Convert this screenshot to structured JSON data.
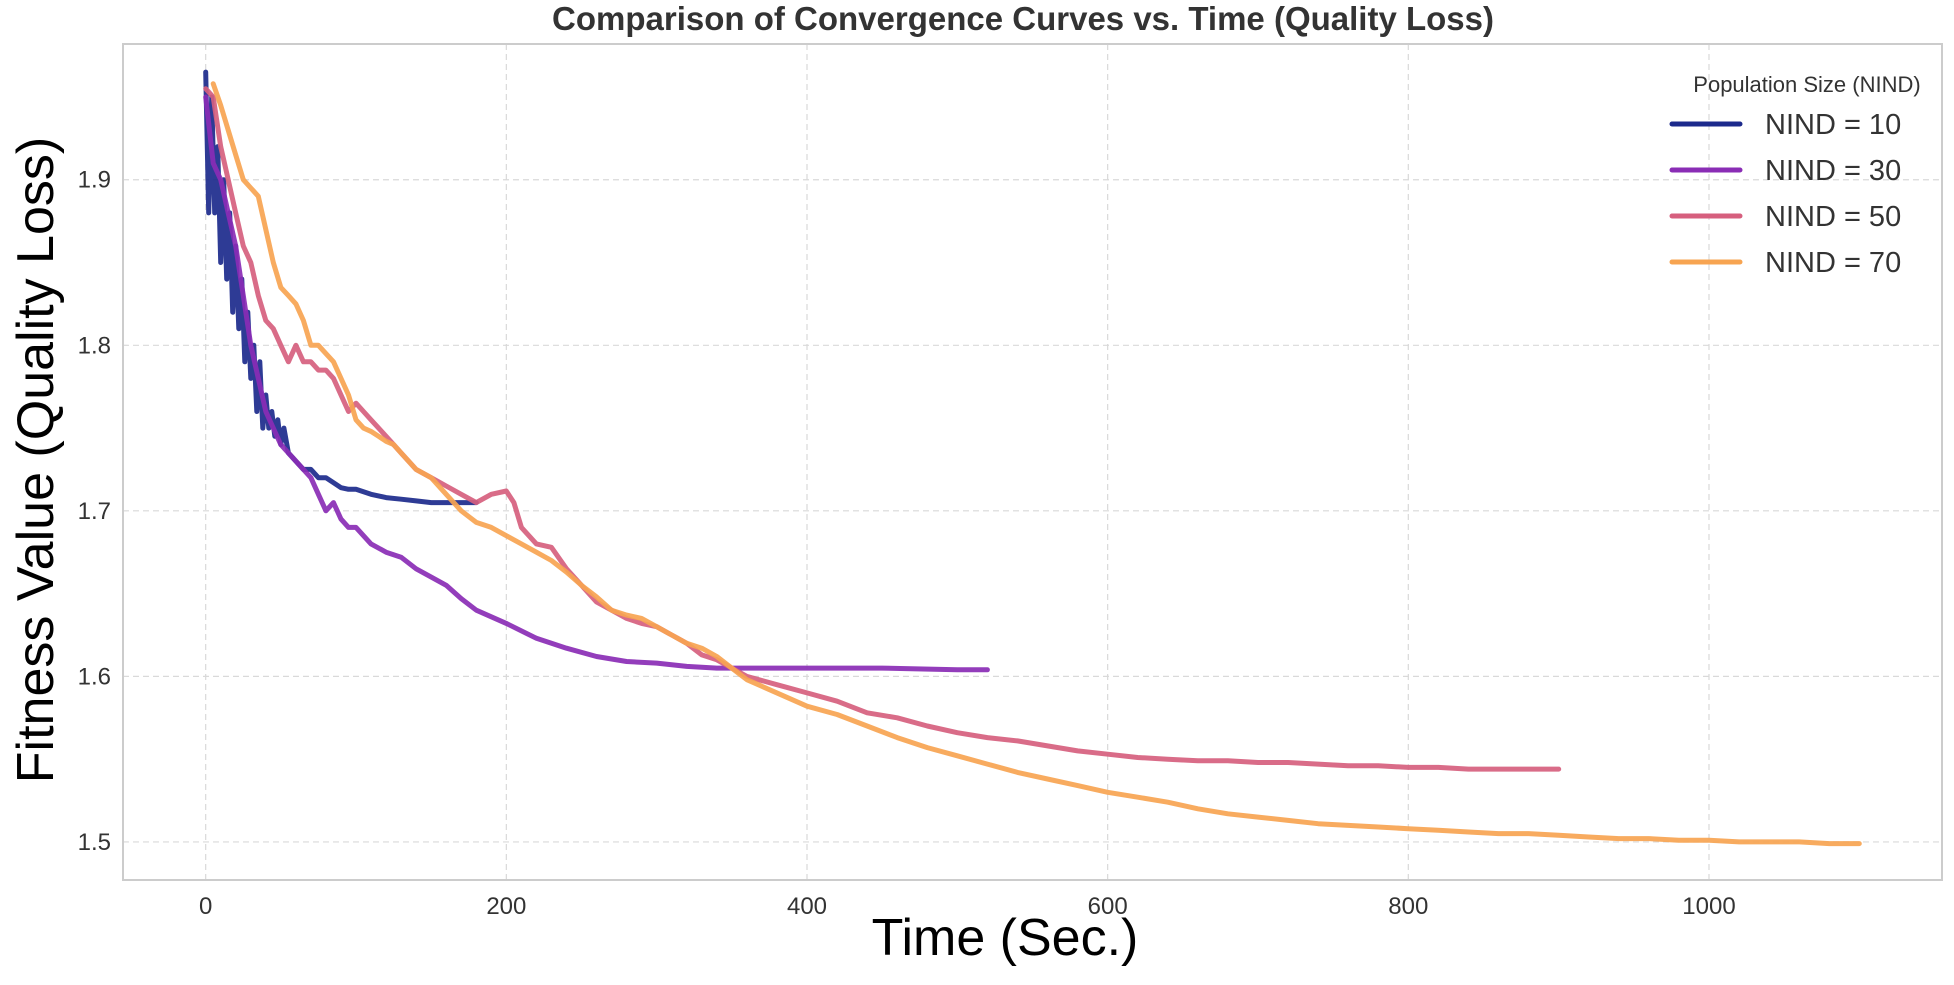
{
  "chart_data": {
    "type": "line",
    "title": "Comparison of Convergence Curves vs. Time (Quality Loss)",
    "xlabel": "Time (Sec.)",
    "ylabel": "Fitness Value (Quality Loss)",
    "xlim": [
      -55,
      1155
    ],
    "ylim": [
      1.477,
      1.982
    ],
    "xticks": [
      0,
      200,
      400,
      600,
      800,
      1000
    ],
    "yticks": [
      1.5,
      1.6,
      1.7,
      1.8,
      1.9
    ],
    "ytick_labels": [
      "1.5",
      "1.6",
      "1.7",
      "1.8",
      "1.9"
    ],
    "grid": true,
    "legend": {
      "title": "Population Size (NIND)",
      "placement": "top-right"
    },
    "series": [
      {
        "name": "NIND = 10",
        "color": "#1c2a8c",
        "points": [
          [
            0,
            1.965
          ],
          [
            2,
            1.88
          ],
          [
            4,
            1.95
          ],
          [
            6,
            1.88
          ],
          [
            8,
            1.92
          ],
          [
            10,
            1.85
          ],
          [
            12,
            1.9
          ],
          [
            14,
            1.84
          ],
          [
            16,
            1.88
          ],
          [
            18,
            1.82
          ],
          [
            20,
            1.86
          ],
          [
            22,
            1.81
          ],
          [
            24,
            1.84
          ],
          [
            26,
            1.79
          ],
          [
            28,
            1.82
          ],
          [
            30,
            1.78
          ],
          [
            32,
            1.8
          ],
          [
            34,
            1.76
          ],
          [
            36,
            1.79
          ],
          [
            38,
            1.75
          ],
          [
            40,
            1.77
          ],
          [
            42,
            1.75
          ],
          [
            44,
            1.76
          ],
          [
            46,
            1.745
          ],
          [
            48,
            1.755
          ],
          [
            50,
            1.74
          ],
          [
            52,
            1.75
          ],
          [
            55,
            1.735
          ],
          [
            60,
            1.73
          ],
          [
            65,
            1.725
          ],
          [
            70,
            1.725
          ],
          [
            75,
            1.72
          ],
          [
            80,
            1.72
          ],
          [
            85,
            1.717
          ],
          [
            90,
            1.714
          ],
          [
            95,
            1.713
          ],
          [
            100,
            1.713
          ],
          [
            110,
            1.71
          ],
          [
            120,
            1.708
          ],
          [
            130,
            1.707
          ],
          [
            140,
            1.706
          ],
          [
            150,
            1.705
          ],
          [
            160,
            1.705
          ],
          [
            170,
            1.705
          ],
          [
            180,
            1.705
          ]
        ]
      },
      {
        "name": "NIND = 30",
        "color": "#8a2db5",
        "points": [
          [
            0,
            1.95
          ],
          [
            5,
            1.91
          ],
          [
            10,
            1.9
          ],
          [
            15,
            1.88
          ],
          [
            20,
            1.86
          ],
          [
            25,
            1.83
          ],
          [
            30,
            1.8
          ],
          [
            35,
            1.78
          ],
          [
            40,
            1.76
          ],
          [
            45,
            1.75
          ],
          [
            50,
            1.74
          ],
          [
            55,
            1.735
          ],
          [
            60,
            1.73
          ],
          [
            65,
            1.725
          ],
          [
            70,
            1.72
          ],
          [
            75,
            1.71
          ],
          [
            80,
            1.7
          ],
          [
            85,
            1.705
          ],
          [
            90,
            1.695
          ],
          [
            95,
            1.69
          ],
          [
            100,
            1.69
          ],
          [
            110,
            1.68
          ],
          [
            120,
            1.675
          ],
          [
            130,
            1.672
          ],
          [
            140,
            1.665
          ],
          [
            150,
            1.66
          ],
          [
            160,
            1.655
          ],
          [
            170,
            1.647
          ],
          [
            180,
            1.64
          ],
          [
            200,
            1.632
          ],
          [
            220,
            1.623
          ],
          [
            240,
            1.617
          ],
          [
            260,
            1.612
          ],
          [
            280,
            1.609
          ],
          [
            300,
            1.608
          ],
          [
            320,
            1.606
          ],
          [
            340,
            1.605
          ],
          [
            360,
            1.605
          ],
          [
            400,
            1.605
          ],
          [
            450,
            1.605
          ],
          [
            500,
            1.604
          ],
          [
            520,
            1.604
          ]
        ]
      },
      {
        "name": "NIND = 50",
        "color": "#d65f7e",
        "points": [
          [
            0,
            1.955
          ],
          [
            5,
            1.95
          ],
          [
            10,
            1.92
          ],
          [
            15,
            1.9
          ],
          [
            20,
            1.88
          ],
          [
            25,
            1.86
          ],
          [
            30,
            1.85
          ],
          [
            35,
            1.83
          ],
          [
            40,
            1.815
          ],
          [
            45,
            1.81
          ],
          [
            50,
            1.8
          ],
          [
            55,
            1.79
          ],
          [
            60,
            1.8
          ],
          [
            65,
            1.79
          ],
          [
            70,
            1.79
          ],
          [
            75,
            1.785
          ],
          [
            80,
            1.785
          ],
          [
            85,
            1.78
          ],
          [
            90,
            1.77
          ],
          [
            95,
            1.76
          ],
          [
            100,
            1.765
          ],
          [
            105,
            1.76
          ],
          [
            110,
            1.755
          ],
          [
            115,
            1.75
          ],
          [
            120,
            1.745
          ],
          [
            125,
            1.74
          ],
          [
            130,
            1.735
          ],
          [
            135,
            1.73
          ],
          [
            140,
            1.725
          ],
          [
            150,
            1.72
          ],
          [
            160,
            1.715
          ],
          [
            170,
            1.71
          ],
          [
            180,
            1.705
          ],
          [
            190,
            1.71
          ],
          [
            200,
            1.712
          ],
          [
            205,
            1.705
          ],
          [
            210,
            1.69
          ],
          [
            220,
            1.68
          ],
          [
            230,
            1.678
          ],
          [
            240,
            1.665
          ],
          [
            250,
            1.655
          ],
          [
            260,
            1.645
          ],
          [
            270,
            1.64
          ],
          [
            280,
            1.635
          ],
          [
            290,
            1.632
          ],
          [
            300,
            1.63
          ],
          [
            310,
            1.625
          ],
          [
            320,
            1.62
          ],
          [
            330,
            1.613
          ],
          [
            340,
            1.61
          ],
          [
            350,
            1.605
          ],
          [
            360,
            1.6
          ],
          [
            380,
            1.595
          ],
          [
            400,
            1.59
          ],
          [
            420,
            1.585
          ],
          [
            440,
            1.578
          ],
          [
            460,
            1.575
          ],
          [
            480,
            1.57
          ],
          [
            500,
            1.566
          ],
          [
            520,
            1.563
          ],
          [
            540,
            1.561
          ],
          [
            560,
            1.558
          ],
          [
            580,
            1.555
          ],
          [
            600,
            1.553
          ],
          [
            620,
            1.551
          ],
          [
            640,
            1.55
          ],
          [
            660,
            1.549
          ],
          [
            680,
            1.549
          ],
          [
            700,
            1.548
          ],
          [
            720,
            1.548
          ],
          [
            740,
            1.547
          ],
          [
            760,
            1.546
          ],
          [
            780,
            1.546
          ],
          [
            800,
            1.545
          ],
          [
            820,
            1.545
          ],
          [
            840,
            1.544
          ],
          [
            860,
            1.544
          ],
          [
            880,
            1.544
          ],
          [
            900,
            1.544
          ]
        ]
      },
      {
        "name": "NIND = 70",
        "color": "#f7a451",
        "points": [
          [
            5,
            1.958
          ],
          [
            10,
            1.945
          ],
          [
            15,
            1.93
          ],
          [
            20,
            1.915
          ],
          [
            25,
            1.9
          ],
          [
            30,
            1.895
          ],
          [
            35,
            1.89
          ],
          [
            40,
            1.87
          ],
          [
            45,
            1.85
          ],
          [
            50,
            1.835
          ],
          [
            55,
            1.83
          ],
          [
            60,
            1.825
          ],
          [
            65,
            1.815
          ],
          [
            70,
            1.8
          ],
          [
            75,
            1.8
          ],
          [
            80,
            1.795
          ],
          [
            85,
            1.79
          ],
          [
            90,
            1.78
          ],
          [
            95,
            1.77
          ],
          [
            100,
            1.755
          ],
          [
            105,
            1.75
          ],
          [
            110,
            1.748
          ],
          [
            115,
            1.745
          ],
          [
            120,
            1.742
          ],
          [
            125,
            1.74
          ],
          [
            130,
            1.735
          ],
          [
            135,
            1.73
          ],
          [
            140,
            1.725
          ],
          [
            150,
            1.72
          ],
          [
            160,
            1.71
          ],
          [
            170,
            1.7
          ],
          [
            180,
            1.693
          ],
          [
            190,
            1.69
          ],
          [
            200,
            1.685
          ],
          [
            210,
            1.68
          ],
          [
            220,
            1.675
          ],
          [
            230,
            1.67
          ],
          [
            240,
            1.663
          ],
          [
            250,
            1.655
          ],
          [
            260,
            1.648
          ],
          [
            270,
            1.64
          ],
          [
            280,
            1.637
          ],
          [
            290,
            1.635
          ],
          [
            300,
            1.63
          ],
          [
            310,
            1.625
          ],
          [
            320,
            1.62
          ],
          [
            330,
            1.617
          ],
          [
            340,
            1.612
          ],
          [
            350,
            1.605
          ],
          [
            360,
            1.598
          ],
          [
            380,
            1.59
          ],
          [
            400,
            1.582
          ],
          [
            420,
            1.577
          ],
          [
            440,
            1.57
          ],
          [
            460,
            1.563
          ],
          [
            480,
            1.557
          ],
          [
            500,
            1.552
          ],
          [
            520,
            1.547
          ],
          [
            540,
            1.542
          ],
          [
            560,
            1.538
          ],
          [
            580,
            1.534
          ],
          [
            600,
            1.53
          ],
          [
            620,
            1.527
          ],
          [
            640,
            1.524
          ],
          [
            660,
            1.52
          ],
          [
            680,
            1.517
          ],
          [
            700,
            1.515
          ],
          [
            720,
            1.513
          ],
          [
            740,
            1.511
          ],
          [
            760,
            1.51
          ],
          [
            780,
            1.509
          ],
          [
            800,
            1.508
          ],
          [
            820,
            1.507
          ],
          [
            840,
            1.506
          ],
          [
            860,
            1.505
          ],
          [
            880,
            1.505
          ],
          [
            900,
            1.504
          ],
          [
            920,
            1.503
          ],
          [
            940,
            1.502
          ],
          [
            960,
            1.502
          ],
          [
            980,
            1.501
          ],
          [
            1000,
            1.501
          ],
          [
            1020,
            1.5
          ],
          [
            1040,
            1.5
          ],
          [
            1060,
            1.5
          ],
          [
            1080,
            1.499
          ],
          [
            1100,
            1.499
          ]
        ]
      }
    ]
  }
}
